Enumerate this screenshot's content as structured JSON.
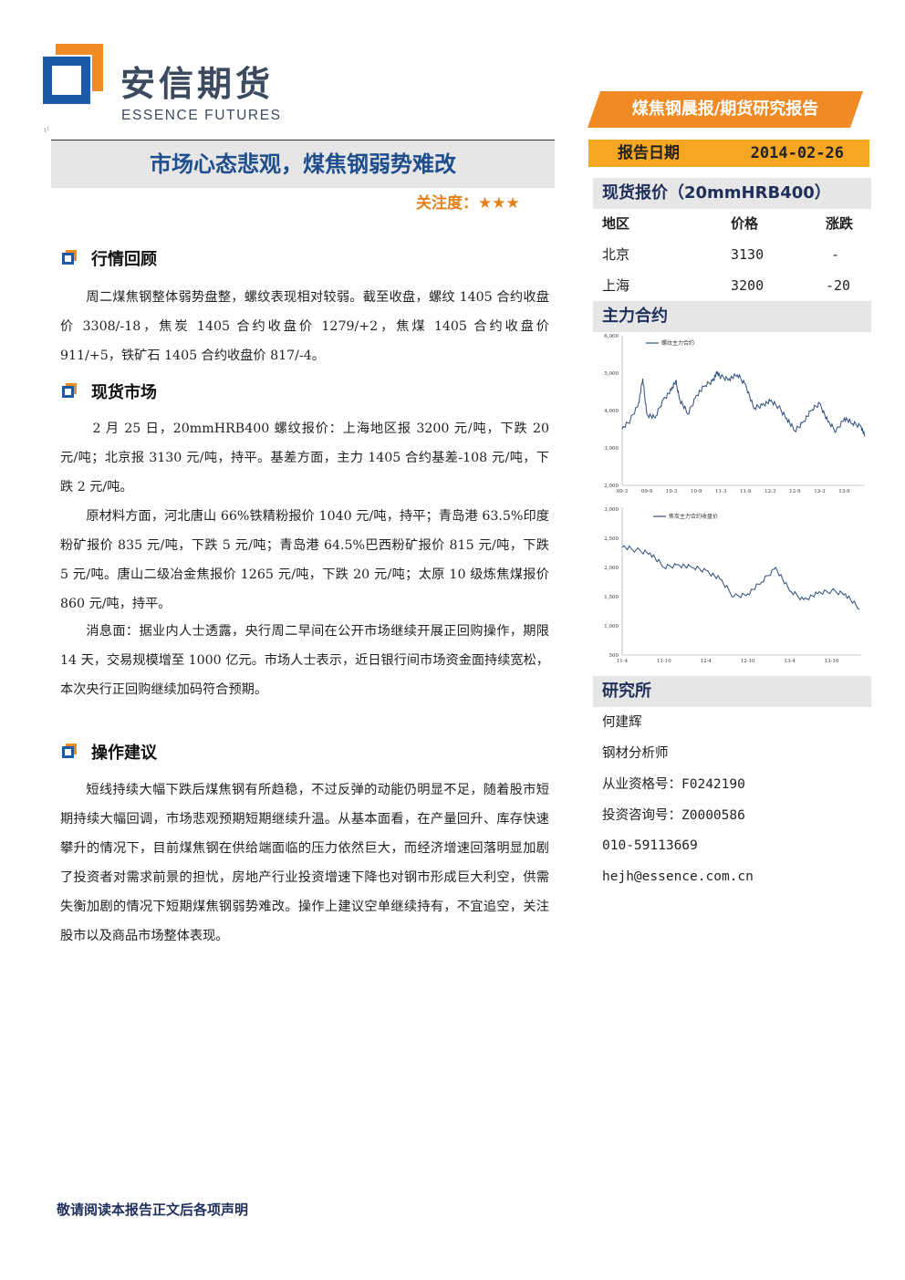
{
  "header": {
    "logo_cn": "安信期货",
    "logo_en": "ESSENCE FUTURES",
    "small_mark": "ι¹"
  },
  "report_type": "煤焦钢晨报/期货研究报告",
  "report_date": {
    "label": "报告日期",
    "value": "2014-02-26"
  },
  "title": "市场心态悲观，煤焦钢弱势难改",
  "attention": {
    "label": "关注度：",
    "stars": "★★★"
  },
  "sections": {
    "review": {
      "heading": "行情回顾",
      "paragraphs": [
        "周二煤焦钢整体弱势盘整，螺纹表现相对较弱。截至收盘，螺纹 1405 合约收盘价 3308/-18，焦炭 1405 合约收盘价 1279/+2，焦煤 1405 合约收盘价 911/+5，铁矿石 1405 合约收盘价 817/-4。"
      ]
    },
    "spot": {
      "heading": "现货市场",
      "paragraphs": [
        "2 月 25 日，20mmHRB400 螺纹报价：上海地区报 3200 元/吨，下跌 20 元/吨；北京报 3130 元/吨，持平。基差方面，主力 1405 合约基差-108 元/吨，下跌 2 元/吨。",
        "原材料方面，河北唐山 66%铁精粉报价 1040 元/吨，持平；青岛港 63.5%印度粉矿报价 835 元/吨，下跌 5 元/吨；青岛港 64.5%巴西粉矿报价 815 元/吨，下跌 5 元/吨。唐山二级冶金焦报价 1265 元/吨，下跌 20 元/吨；太原 10 级炼焦煤报价 860 元/吨，持平。",
        "消息面：据业内人士透露，央行周二早间在公开市场继续开展正回购操作，期限 14 天，交易规模增至 1000 亿元。市场人士表示，近日银行间市场资金面持续宽松，本次央行正回购继续加码符合预期。"
      ]
    },
    "advice": {
      "heading": "操作建议",
      "paragraphs": [
        "短线持续大幅下跌后煤焦钢有所趋稳，不过反弹的动能仍明显不足，随着股市短期持续大幅回调，市场悲观预期短期继续升温。从基本面看，在产量回升、库存快速攀升的情况下，目前煤焦钢在供给端面临的压力依然巨大，而经济增速回落明显加剧了投资者对需求前景的担忧，房地产行业投资增速下降也对钢市形成巨大利空，供需失衡加剧的情况下短期煤焦钢弱势难改。操作上建议空单继续持有，不宜追空，关注股市以及商品市场整体表现。"
      ]
    }
  },
  "spot_quote": {
    "heading": "现货报价（20mmHRB400）",
    "columns": [
      "地区",
      "价格",
      "涨跌"
    ],
    "rows": [
      [
        "北京",
        "3130",
        "-"
      ],
      [
        "上海",
        "3200",
        "-20"
      ]
    ]
  },
  "main_contract": {
    "heading": "主力合约"
  },
  "chart_data": [
    {
      "type": "line",
      "series": [
        {
          "name": "螺纹主力合约"
        }
      ],
      "yticks": [
        "6,000",
        "5,000",
        "4,000",
        "3,000",
        "2,000"
      ],
      "ylim": [
        2000,
        6000
      ],
      "xticks": [
        "09-3",
        "09-9",
        "10-3",
        "10-9",
        "11-3",
        "11-9",
        "12-3",
        "12-9",
        "13-3",
        "13-9"
      ],
      "x": [
        "2009-03",
        "2009-05",
        "2009-07",
        "2009-08",
        "2009-09",
        "2009-11",
        "2010-01",
        "2010-03",
        "2010-04",
        "2010-05",
        "2010-07",
        "2010-09",
        "2010-11",
        "2011-01",
        "2011-02",
        "2011-03",
        "2011-05",
        "2011-07",
        "2011-09",
        "2011-11",
        "2012-01",
        "2012-03",
        "2012-05",
        "2012-07",
        "2012-09",
        "2012-11",
        "2013-01",
        "2013-03",
        "2013-05",
        "2013-07",
        "2013-09",
        "2013-11",
        "2014-01",
        "2014-02"
      ],
      "values": [
        3500,
        3750,
        4200,
        4850,
        3900,
        3800,
        4300,
        4550,
        4800,
        4300,
        3900,
        4400,
        4650,
        4800,
        5000,
        4900,
        4850,
        4950,
        4700,
        4050,
        4150,
        4250,
        4100,
        3800,
        3450,
        3700,
        4000,
        4200,
        3700,
        3450,
        3800,
        3650,
        3600,
        3310
      ]
    },
    {
      "type": "line",
      "series": [
        {
          "name": "焦炭主力合约收盘价"
        }
      ],
      "yticks": [
        "3,000",
        "2,500",
        "2,000",
        "1,500",
        "1,000",
        "500"
      ],
      "ylim": [
        500,
        3000
      ],
      "xticks": [
        "11-4",
        "11-10",
        "12-4",
        "12-10",
        "13-4",
        "13-10"
      ],
      "x": [
        "2011-04",
        "2011-06",
        "2011-08",
        "2011-10",
        "2011-12",
        "2012-02",
        "2012-04",
        "2012-06",
        "2012-08",
        "2012-10",
        "2012-12",
        "2013-02",
        "2013-04",
        "2013-06",
        "2013-08",
        "2013-10",
        "2013-12",
        "2014-02"
      ],
      "values": [
        2350,
        2300,
        2250,
        2000,
        2050,
        2000,
        1950,
        1800,
        1500,
        1550,
        1750,
        2000,
        1600,
        1450,
        1550,
        1600,
        1550,
        1280
      ]
    }
  ],
  "institute": {
    "heading": "研究所",
    "name": "何建辉",
    "title": "钢材分析师",
    "license": "从业资格号：F0242190",
    "advisor_id": "投资咨询号：Z0000586",
    "phone": "010-59113669",
    "email": "hejh@essence.com.cn"
  },
  "footer": "敬请阅读本报告正文后各项声明",
  "colors": {
    "brand_blue": "#1f4e8c",
    "orange": "#f5a623",
    "banner_orange": "#f08a24",
    "line_blue": "#2e4d7a"
  }
}
